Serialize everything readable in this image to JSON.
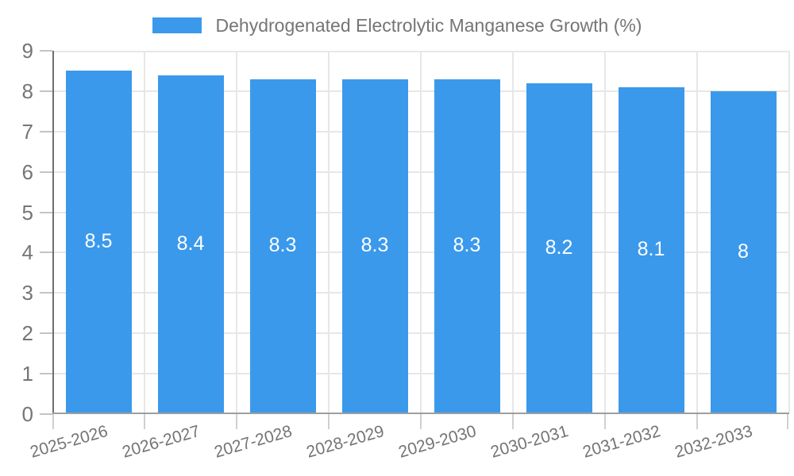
{
  "legend": {
    "label": "Dehydrogenated Electrolytic Manganese Growth (%)"
  },
  "chart_data": {
    "type": "bar",
    "title": "Dehydrogenated Electrolytic Manganese Growth (%)",
    "categories": [
      "2025-2026",
      "2026-2027",
      "2027-2028",
      "2028-2029",
      "2029-2030",
      "2030-2031",
      "2031-2032",
      "2032-2033"
    ],
    "series": [
      {
        "name": "Dehydrogenated Electrolytic Manganese Growth (%)",
        "values": [
          8.5,
          8.4,
          8.3,
          8.3,
          8.3,
          8.2,
          8.1,
          8
        ]
      }
    ],
    "bar_labels": [
      "8.5",
      "8.4",
      "8.3",
      "8.3",
      "8.3",
      "8.2",
      "8.1",
      "8"
    ],
    "xlabel": "",
    "ylabel": "",
    "ylim": [
      0,
      9
    ],
    "y_ticks": [
      0,
      1,
      2,
      3,
      4,
      5,
      6,
      7,
      8,
      9
    ],
    "grid": true,
    "legend_position": "top",
    "colors": {
      "bar": "#3b99ec",
      "bar_label": "#ffffff",
      "axis_text": "#757575",
      "gridline": "#e7e7e7",
      "y_axis_line": "#6f6f6f",
      "x_axis_line": "#9e9e9e"
    }
  }
}
